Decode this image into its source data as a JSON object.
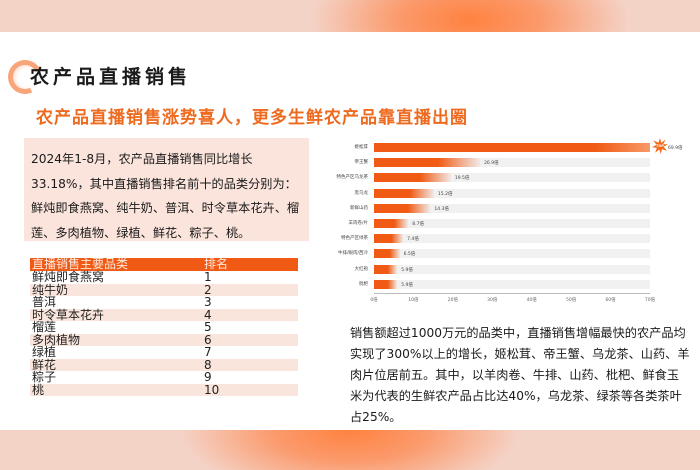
{
  "header": {
    "title": "农产品直播销售",
    "subtitle": "农产品直播销售涨势喜人，更多生鲜农产品靠直播出圈"
  },
  "intro": {
    "text": "2024年1-8月，农产品直播销售同比增长33.18%，其中直播销售排名前十的品类分别为：鲜炖即食燕窝、纯牛奶、普洱、时令草本花卉、榴莲、多肉植物、绿植、鲜花、粽子、桃。"
  },
  "ranking_table": {
    "headers": [
      "直播销售主要品类",
      "排名"
    ],
    "rows": [
      {
        "category": "鲜炖即食燕窝",
        "rank": "1"
      },
      {
        "category": "纯牛奶",
        "rank": "2"
      },
      {
        "category": "普洱",
        "rank": "3"
      },
      {
        "category": "时令草本花卉",
        "rank": "4"
      },
      {
        "category": "榴莲",
        "rank": "5"
      },
      {
        "category": "多肉植物",
        "rank": "6"
      },
      {
        "category": "绿植",
        "rank": "7"
      },
      {
        "category": "鲜花",
        "rank": "8"
      },
      {
        "category": "粽子",
        "rank": "9"
      },
      {
        "category": "桃",
        "rank": "10"
      }
    ]
  },
  "chart_data": {
    "type": "bar",
    "orientation": "horizontal",
    "title": "",
    "xlabel": "",
    "ylabel": "",
    "categories": [
      "姬松茸",
      "帝王蟹",
      "特色产区乌龙茶",
      "黑乌龙",
      "新鲜山药",
      "羊肉卷/片",
      "特色产区绿茶",
      "牛排/眼肉/西冷",
      "大红袍",
      "枇杷"
    ],
    "values": [
      69.9,
      26.9,
      19.5,
      15.2,
      14.3,
      8.7,
      7.4,
      6.5,
      5.9,
      5.9
    ],
    "value_labels": [
      "69.9倍",
      "26.9倍",
      "19.5倍",
      "15.2倍",
      "14.3倍",
      "8.7倍",
      "7.4倍",
      "6.5倍",
      "5.9倍",
      "5.9倍"
    ],
    "xticks": [
      "0倍",
      "10倍",
      "20倍",
      "30倍",
      "40倍",
      "50倍",
      "60倍",
      "70倍"
    ],
    "xlim": [
      0,
      70
    ],
    "grid": false,
    "legend": null,
    "annotations": [
      {
        "target": "姬松茸",
        "text": "TOP",
        "shape": "starburst"
      }
    ],
    "accent_color": "#f05a14"
  },
  "description": {
    "text": "销售额超过1000万元的品类中，直播销售增幅最快的农产品均实现了300%以上的增长，姬松茸、帝王蟹、乌龙茶、山药、羊肉片位居前五。其中，以羊肉卷、牛排、山药、枇杷、鲜食玉米为代表的生鲜农产品占比达40%，乌龙茶、绿茶等各类茶叶占25%。"
  },
  "colors": {
    "accent": "#f05a14",
    "subtitle": "#ee6a1e",
    "box_bg": "#fbe4dc",
    "band": "#f4d3c7"
  }
}
